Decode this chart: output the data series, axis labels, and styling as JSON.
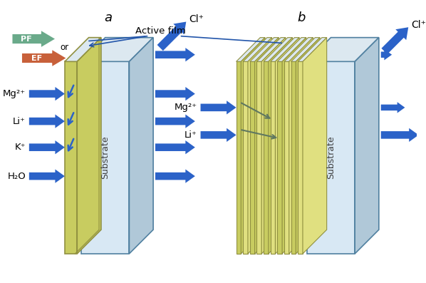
{
  "bg_color": "#ffffff",
  "label_a": "a",
  "label_b": "b",
  "pf_color": "#6aaa8a",
  "ef_color": "#c8603a",
  "blue": "#2255aa",
  "blue_arrow": "#2b62c8",
  "af_yellow": "#c8cc60",
  "af_yellow2": "#e0e080",
  "af_edge": "#909040",
  "sub_face": "#d8e8f4",
  "sub_top": "#e8f0f8",
  "sub_right": "#b8ccd8",
  "sub_edge": "#5080a0",
  "top_face_color": "#dce8f0",
  "right_face_color": "#b0c8d8",
  "ions_a": [
    "Mg²⁺",
    "Li⁺",
    "K⁺",
    "H₂O"
  ],
  "ions_b": [
    "Mg²⁺",
    "Li⁺"
  ],
  "cl_label": "Cl⁺",
  "active_film_label": "Active film"
}
